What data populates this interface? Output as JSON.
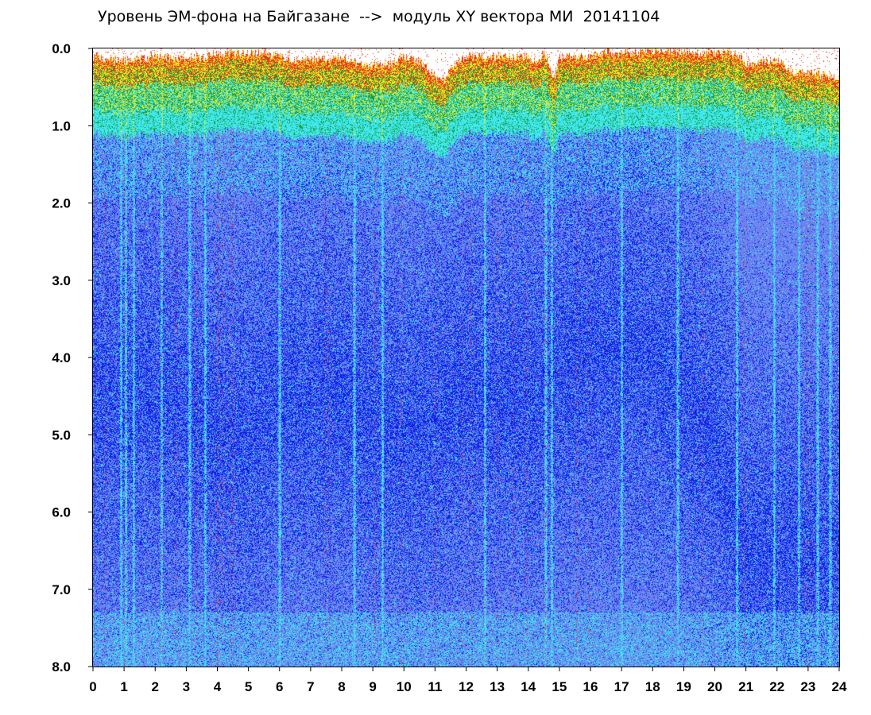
{
  "chart_data": {
    "type": "heatmap",
    "title": "Уровень ЭМ-фона на Байгазане  -->  модуль XY вектора МИ  20141104",
    "xlabel": "",
    "ylabel": "",
    "x_range": [
      0,
      24
    ],
    "y_range": [
      0.0,
      8.0
    ],
    "y_inverted": true,
    "x_ticks": [
      "0",
      "1",
      "2",
      "3",
      "4",
      "5",
      "6",
      "7",
      "8",
      "9",
      "10",
      "11",
      "12",
      "13",
      "14",
      "15",
      "16",
      "17",
      "18",
      "19",
      "20",
      "21",
      "22",
      "23",
      "24"
    ],
    "y_ticks": [
      "0.0",
      "1.0",
      "2.0",
      "3.0",
      "4.0",
      "5.0",
      "6.0",
      "7.0",
      "8.0"
    ],
    "grid": false,
    "colors": {
      "low_density": "#0a1ee6",
      "mid_density": "#6f7ff0",
      "bright_band": "#3fe8ee",
      "green": "#1a9a3a",
      "yellow": "#f2ef1e",
      "red": "#e8321e",
      "background": "#ffffff"
    },
    "notes_visible": [],
    "top_edge_profile": {
      "x_hours": [
        0,
        0.5,
        1,
        1.5,
        2,
        2.5,
        3,
        3.5,
        4,
        4.5,
        5,
        5.5,
        6,
        6.5,
        7,
        7.5,
        8,
        8.5,
        9,
        9.5,
        10,
        10.5,
        11,
        11.3,
        11.6,
        12,
        12.5,
        13,
        13.5,
        14,
        14.3,
        14.5,
        14.8,
        15,
        15.5,
        16,
        16.5,
        17,
        17.5,
        18,
        18.5,
        19,
        19.5,
        20,
        20.5,
        20.7,
        21,
        21.5,
        22,
        22.5,
        23,
        23.5,
        24
      ],
      "min_level": [
        0.1,
        0.12,
        0.15,
        0.12,
        0.1,
        0.12,
        0.1,
        0.12,
        0.06,
        0.05,
        0.05,
        0.05,
        0.1,
        0.15,
        0.15,
        0.12,
        0.1,
        0.2,
        0.2,
        0.2,
        0.1,
        0.15,
        0.35,
        0.4,
        0.2,
        0.1,
        0.1,
        0.1,
        0.1,
        0.1,
        0.2,
        0.0,
        0.4,
        0.1,
        0.1,
        0.1,
        0.05,
        0.05,
        0.05,
        0.02,
        0.02,
        0.05,
        0.05,
        0.05,
        0.05,
        0.05,
        0.2,
        0.15,
        0.15,
        0.3,
        0.3,
        0.35,
        0.35
      ]
    },
    "dense_zone_levels": {
      "x_hours": [
        0,
        2,
        4,
        5,
        6,
        8,
        10,
        12,
        14,
        16,
        18,
        20,
        21,
        22,
        24
      ],
      "center_level": [
        4.5,
        4.5,
        5.0,
        5.0,
        4.5,
        4.5,
        5.0,
        4.5,
        4.5,
        4.0,
        4.0,
        5.0,
        6.5,
        6.5,
        6.5
      ]
    },
    "bright_stripes_hours": [
      0.9,
      1.05,
      1.3,
      2.2,
      3.1,
      3.6,
      6.0,
      8.4,
      9.3,
      12.6,
      14.55,
      14.75,
      17.0,
      18.8,
      20.7,
      21.9,
      22.7,
      23.3,
      23.7
    ]
  }
}
